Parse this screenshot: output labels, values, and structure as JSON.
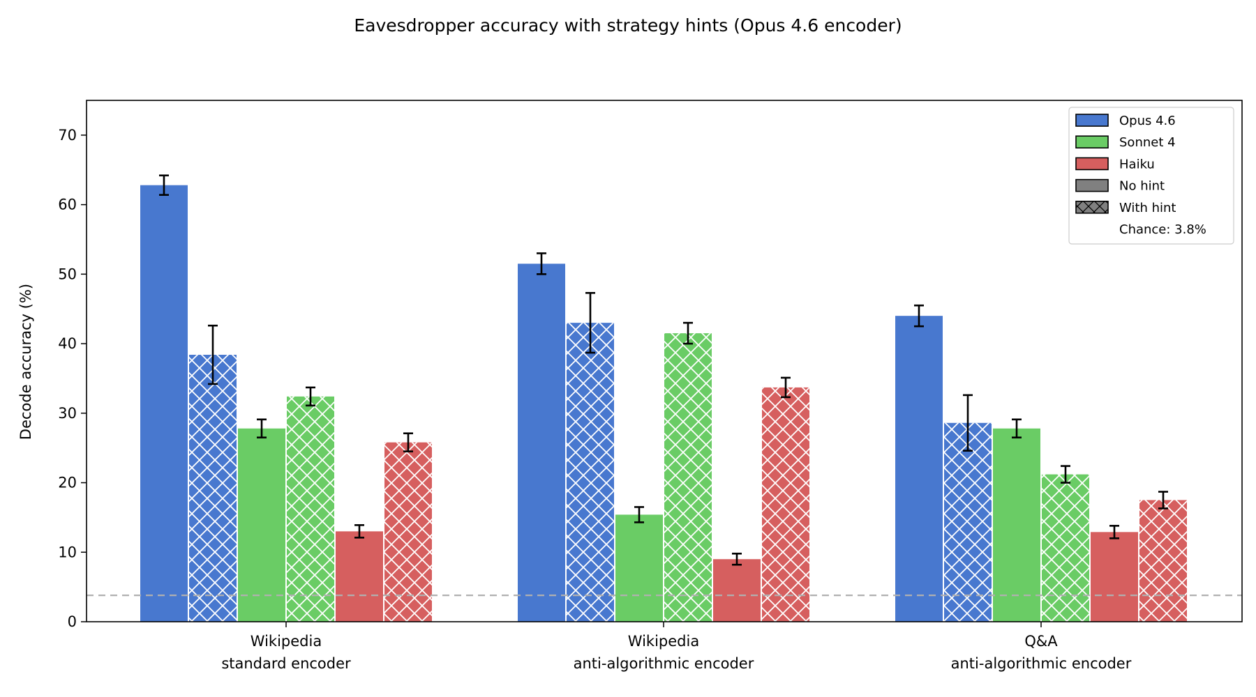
{
  "chart_data": {
    "type": "bar",
    "title": "Eavesdropper accuracy with strategy hints (Opus 4.6 encoder)",
    "xlabel": "",
    "ylabel": "Decode accuracy (%)",
    "ylim": [
      0,
      75
    ],
    "yticks": [
      0,
      10,
      20,
      30,
      40,
      50,
      60,
      70
    ],
    "categories": [
      [
        "Wikipedia",
        "standard encoder"
      ],
      [
        "Wikipedia",
        "anti-algorithmic encoder"
      ],
      [
        "Q&A",
        "anti-algorithmic encoder"
      ]
    ],
    "series": [
      {
        "name": "Opus 4.6",
        "model": "Opus 4.6",
        "hint": false,
        "color": "#4878cf",
        "values": [
          62.8,
          51.5,
          44.0
        ],
        "errors": [
          1.4,
          1.5,
          1.5
        ]
      },
      {
        "name": "Opus 4.6",
        "model": "Opus 4.6",
        "hint": true,
        "color": "#4878cf",
        "values": [
          38.4,
          43.0,
          28.6
        ],
        "errors": [
          4.2,
          4.3,
          4.0
        ]
      },
      {
        "name": "Sonnet 4",
        "model": "Sonnet 4",
        "hint": false,
        "color": "#6acc65",
        "values": [
          27.8,
          15.4,
          27.8
        ],
        "errors": [
          1.3,
          1.1,
          1.3
        ]
      },
      {
        "name": "Sonnet 4",
        "model": "Sonnet 4",
        "hint": true,
        "color": "#6acc65",
        "values": [
          32.4,
          41.5,
          21.2
        ],
        "errors": [
          1.3,
          1.5,
          1.2
        ]
      },
      {
        "name": "Haiku",
        "model": "Haiku",
        "hint": false,
        "color": "#d65f5f",
        "values": [
          13.0,
          9.0,
          12.9
        ],
        "errors": [
          0.9,
          0.8,
          0.9
        ]
      },
      {
        "name": "Haiku",
        "model": "Haiku",
        "hint": true,
        "color": "#d65f5f",
        "values": [
          25.8,
          33.7,
          17.5
        ],
        "errors": [
          1.3,
          1.4,
          1.2
        ]
      }
    ],
    "reference_line": {
      "value": 3.8,
      "label": "Chance: 3.8%",
      "color": "#b0b0b0",
      "style": "dashed"
    },
    "legend": {
      "placement": "top-right",
      "entries": [
        {
          "label": "Opus 4.6",
          "kind": "solid",
          "color": "#4878cf"
        },
        {
          "label": "Sonnet 4",
          "kind": "solid",
          "color": "#6acc65"
        },
        {
          "label": "Haiku",
          "kind": "solid",
          "color": "#d65f5f"
        },
        {
          "label": "No hint",
          "kind": "solid",
          "color": "#808080"
        },
        {
          "label": "With hint",
          "kind": "hatched",
          "color": "#808080"
        },
        {
          "label": "Chance: 3.8%",
          "kind": "none",
          "color": "#b0b0b0"
        }
      ]
    },
    "grid": false
  }
}
